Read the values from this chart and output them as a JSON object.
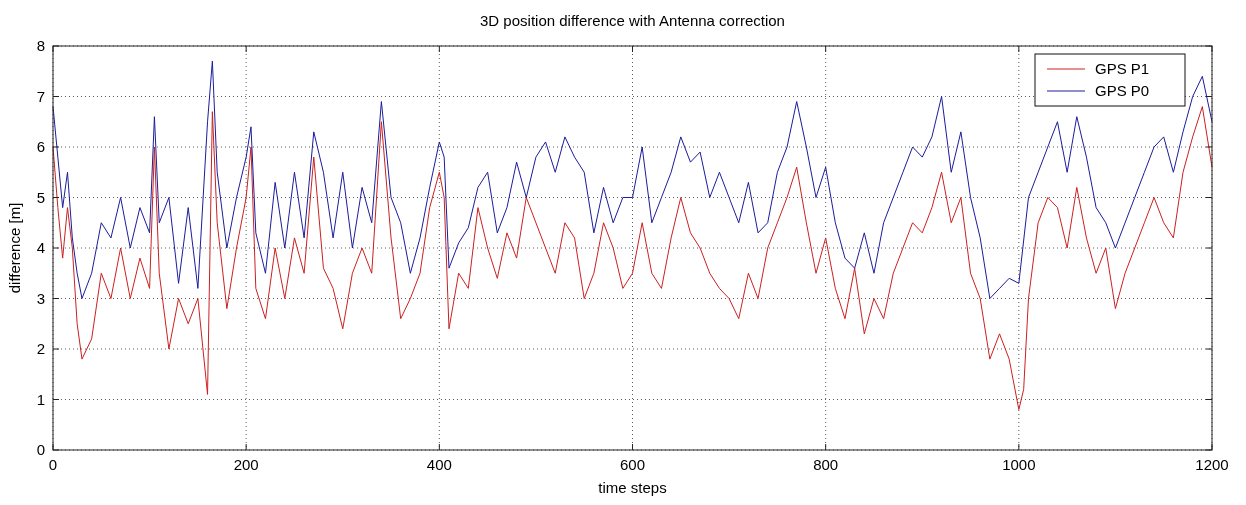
{
  "chart_data": {
    "type": "line",
    "title": "3D position difference with Antenna correction",
    "xlabel": "time steps",
    "ylabel": "difference [m]",
    "xlim": [
      0,
      1200
    ],
    "xticks": [
      0,
      200,
      400,
      600,
      800,
      1000,
      1200
    ],
    "ylim": [
      0,
      8
    ],
    "yticks": [
      0,
      1,
      2,
      3,
      4,
      5,
      6,
      7,
      8
    ],
    "grid": true,
    "legend": "top right",
    "marker": "none",
    "line_style": "solid",
    "series": [
      {
        "name": "GPS P1",
        "color": "#cc2020",
        "x": [
          0,
          5,
          10,
          15,
          20,
          25,
          30,
          40,
          50,
          60,
          70,
          80,
          90,
          100,
          105,
          110,
          120,
          130,
          140,
          150,
          160,
          165,
          170,
          180,
          190,
          200,
          205,
          210,
          220,
          230,
          240,
          250,
          260,
          270,
          280,
          290,
          300,
          310,
          320,
          330,
          340,
          350,
          360,
          370,
          380,
          390,
          400,
          405,
          410,
          420,
          430,
          440,
          450,
          460,
          470,
          480,
          490,
          500,
          510,
          520,
          530,
          540,
          550,
          560,
          570,
          580,
          590,
          600,
          610,
          620,
          630,
          640,
          650,
          660,
          670,
          680,
          690,
          700,
          710,
          720,
          730,
          740,
          750,
          760,
          770,
          780,
          790,
          800,
          810,
          820,
          830,
          840,
          850,
          860,
          870,
          880,
          890,
          900,
          910,
          920,
          930,
          940,
          950,
          960,
          970,
          980,
          990,
          1000,
          1005,
          1010,
          1020,
          1030,
          1040,
          1050,
          1060,
          1070,
          1080,
          1090,
          1100,
          1110,
          1120,
          1130,
          1140,
          1150,
          1160,
          1170,
          1180,
          1190,
          1200
        ],
        "values": [
          6.0,
          4.8,
          3.8,
          4.8,
          4.0,
          2.5,
          1.8,
          2.2,
          3.5,
          3.0,
          4.0,
          3.0,
          3.8,
          3.2,
          6.0,
          3.5,
          2.0,
          3.0,
          2.5,
          3.0,
          1.1,
          6.7,
          4.5,
          2.8,
          4.0,
          5.0,
          6.0,
          3.2,
          2.6,
          4.0,
          3.0,
          4.2,
          3.5,
          5.8,
          3.6,
          3.2,
          2.4,
          3.5,
          4.0,
          3.5,
          6.5,
          4.2,
          2.6,
          3.0,
          3.5,
          4.8,
          5.5,
          5.0,
          2.4,
          3.5,
          3.2,
          4.8,
          4.0,
          3.4,
          4.3,
          3.8,
          5.0,
          4.5,
          4.0,
          3.5,
          4.5,
          4.2,
          3.0,
          3.5,
          4.5,
          4.0,
          3.2,
          3.5,
          4.5,
          3.5,
          3.2,
          4.2,
          5.0,
          4.3,
          4.0,
          3.5,
          3.2,
          3.0,
          2.6,
          3.5,
          3.0,
          4.0,
          4.5,
          5.0,
          5.6,
          4.5,
          3.5,
          4.2,
          3.2,
          2.6,
          3.6,
          2.3,
          3.0,
          2.6,
          3.5,
          4.0,
          4.5,
          4.3,
          4.8,
          5.5,
          4.5,
          5.0,
          3.5,
          3.0,
          1.8,
          2.3,
          1.8,
          0.8,
          1.2,
          3.0,
          4.5,
          5.0,
          4.8,
          4.0,
          5.2,
          4.2,
          3.5,
          4.0,
          2.8,
          3.5,
          4.0,
          4.5,
          5.0,
          4.5,
          4.2,
          5.5,
          6.2,
          6.8,
          5.6
        ]
      },
      {
        "name": "GPS P0",
        "color": "#1c1c9c",
        "x": [
          0,
          5,
          10,
          15,
          20,
          25,
          30,
          40,
          50,
          60,
          70,
          80,
          90,
          100,
          105,
          110,
          120,
          130,
          140,
          150,
          160,
          165,
          170,
          180,
          190,
          200,
          205,
          210,
          220,
          230,
          240,
          250,
          260,
          270,
          280,
          290,
          300,
          310,
          320,
          330,
          340,
          350,
          360,
          370,
          380,
          390,
          400,
          405,
          410,
          420,
          430,
          440,
          450,
          460,
          470,
          480,
          490,
          500,
          510,
          520,
          530,
          540,
          550,
          560,
          570,
          580,
          590,
          600,
          610,
          620,
          630,
          640,
          650,
          660,
          670,
          680,
          690,
          700,
          710,
          720,
          730,
          740,
          750,
          760,
          770,
          780,
          790,
          800,
          810,
          820,
          830,
          840,
          850,
          860,
          870,
          880,
          890,
          900,
          910,
          920,
          930,
          940,
          950,
          960,
          970,
          980,
          990,
          1000,
          1010,
          1020,
          1030,
          1040,
          1050,
          1060,
          1070,
          1080,
          1090,
          1100,
          1110,
          1120,
          1130,
          1140,
          1150,
          1160,
          1170,
          1180,
          1190,
          1200
        ],
        "values": [
          6.8,
          5.8,
          4.8,
          5.5,
          4.2,
          3.5,
          3.0,
          3.5,
          4.5,
          4.2,
          5.0,
          4.0,
          4.8,
          4.3,
          6.6,
          4.5,
          5.0,
          3.3,
          4.8,
          3.2,
          6.5,
          7.7,
          5.5,
          4.0,
          5.0,
          5.8,
          6.4,
          4.3,
          3.5,
          5.3,
          4.0,
          5.5,
          4.2,
          6.3,
          5.5,
          4.2,
          5.5,
          4.0,
          5.2,
          4.5,
          6.9,
          5.0,
          4.5,
          3.5,
          4.2,
          5.2,
          6.1,
          5.8,
          3.6,
          4.1,
          4.4,
          5.2,
          5.5,
          4.3,
          4.8,
          5.7,
          5.0,
          5.8,
          6.1,
          5.5,
          6.2,
          5.8,
          5.5,
          4.3,
          5.2,
          4.5,
          5.0,
          5.0,
          6.0,
          4.5,
          5.0,
          5.5,
          6.2,
          5.7,
          5.9,
          5.0,
          5.5,
          5.0,
          4.5,
          5.3,
          4.3,
          4.5,
          5.5,
          6.0,
          6.9,
          6.0,
          5.0,
          5.6,
          4.5,
          3.8,
          3.6,
          4.3,
          3.5,
          4.5,
          5.0,
          5.5,
          6.0,
          5.8,
          6.2,
          7.0,
          5.5,
          6.3,
          5.0,
          4.2,
          3.0,
          3.2,
          3.4,
          3.3,
          5.0,
          5.5,
          6.0,
          6.5,
          5.5,
          6.6,
          5.8,
          4.8,
          4.5,
          4.0,
          4.5,
          5.0,
          5.5,
          6.0,
          6.2,
          5.5,
          6.3,
          7.0,
          7.4,
          6.5
        ]
      }
    ]
  }
}
